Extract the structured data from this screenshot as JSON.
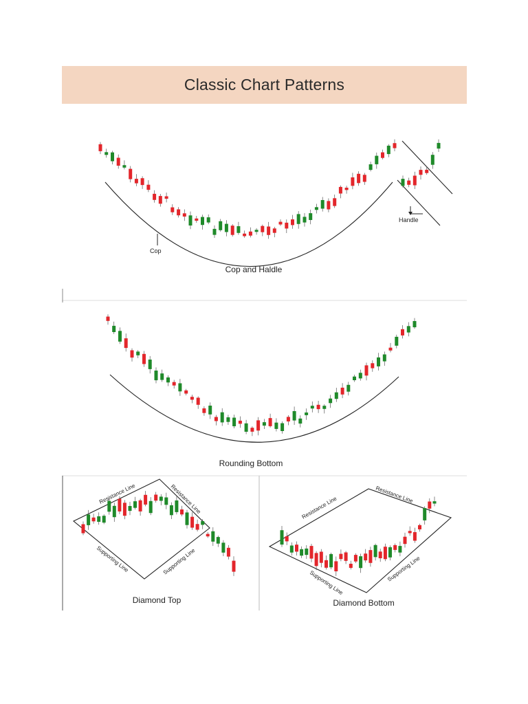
{
  "title": "Classic Chart Patterns",
  "colors": {
    "bull": "#1f8a2a",
    "bear": "#e3262b",
    "line": "#222222",
    "title_bg": "#f4d6c1",
    "wick": "#555555"
  },
  "panels": [
    {
      "id": "cup-handle",
      "title": "Cop and Haldle",
      "labels": {
        "cup": "Cop",
        "handle": "Handle"
      }
    },
    {
      "id": "rounding-bottom",
      "title": "Rounding Bottom"
    },
    {
      "id": "diamond-top",
      "title": "Diamond Top",
      "labels": {
        "resistance_left": "Resistance Line",
        "resistance_right": "Resistance Line",
        "support_left": "Supporting Line",
        "support_right": "Supporting Line"
      }
    },
    {
      "id": "diamond-bottom",
      "title": "Diamond Bottom",
      "labels": {
        "resistance_left": "Resistance Line",
        "resistance_right": "Resistance Line",
        "support_left": "Supporting Line",
        "support_right": "Supporting Line"
      }
    }
  ]
}
